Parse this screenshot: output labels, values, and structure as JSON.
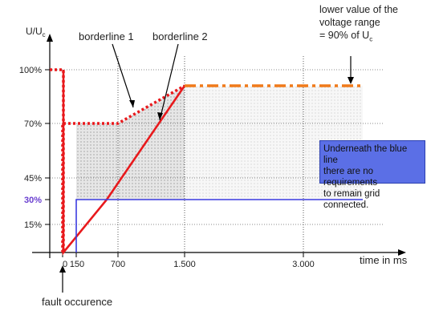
{
  "chart_data": {
    "type": "line",
    "ylabel": "U/U",
    "ylabel_sub": "c",
    "xlabel": "time in ms",
    "y_ticks": [
      {
        "value": 100,
        "label": "100%"
      },
      {
        "value": 70,
        "label": "70%"
      },
      {
        "value": 45,
        "label": "45%"
      },
      {
        "value": 30,
        "label": "30%"
      },
      {
        "value": 15,
        "label": "15%"
      }
    ],
    "x_ticks": [
      {
        "value": 0,
        "label": "0"
      },
      {
        "value": 150,
        "label": "150"
      },
      {
        "value": 700,
        "label": "700"
      },
      {
        "value": 1500,
        "label": "1.500"
      },
      {
        "value": 3000,
        "label": "3.000"
      }
    ],
    "ylim": [
      0,
      110
    ],
    "xlim": [
      -400,
      3900
    ],
    "grid": true,
    "series": [
      {
        "name": "borderline 1",
        "color": "#e8191c",
        "style": "dotted",
        "points": [
          [
            -350,
            100
          ],
          [
            -200,
            100
          ],
          [
            -200,
            0
          ],
          [
            0,
            0
          ],
          [
            0,
            70
          ],
          [
            700,
            70
          ],
          [
            1500,
            90
          ]
        ]
      },
      {
        "name": "borderline 2",
        "color": "#e8191c",
        "style": "solid",
        "points": [
          [
            -120,
            100
          ],
          [
            -120,
            0
          ],
          [
            600,
            30
          ],
          [
            1500,
            90
          ]
        ]
      },
      {
        "name": "blue line",
        "color": "#3b3be0",
        "style": "solid",
        "points": [
          [
            150,
            0
          ],
          [
            150,
            30
          ],
          [
            3550,
            30
          ]
        ]
      },
      {
        "name": "lower value of the voltage range",
        "color": "#f07a1a",
        "style": "dashdot",
        "points": [
          [
            1500,
            90
          ],
          [
            3550,
            90
          ]
        ]
      }
    ]
  },
  "annotations": {
    "borderline1": "borderline 1",
    "borderline2": "borderline 2",
    "lower_value_line1": "lower value of the",
    "lower_value_line2": "voltage range",
    "lower_value_line3_prefix": "= 90% of U",
    "lower_value_sub": "c",
    "fault": "fault occurence",
    "note_line1": "Underneath the blue line",
    "note_line2": "there are no requirements",
    "note_line3": "to remain grid connected."
  },
  "colors": {
    "red": "#e8191c",
    "blue": "#3b3be0",
    "orange": "#f07a1a",
    "note_bg": "#5b6fe6",
    "label_30": "#6a3fd0"
  }
}
